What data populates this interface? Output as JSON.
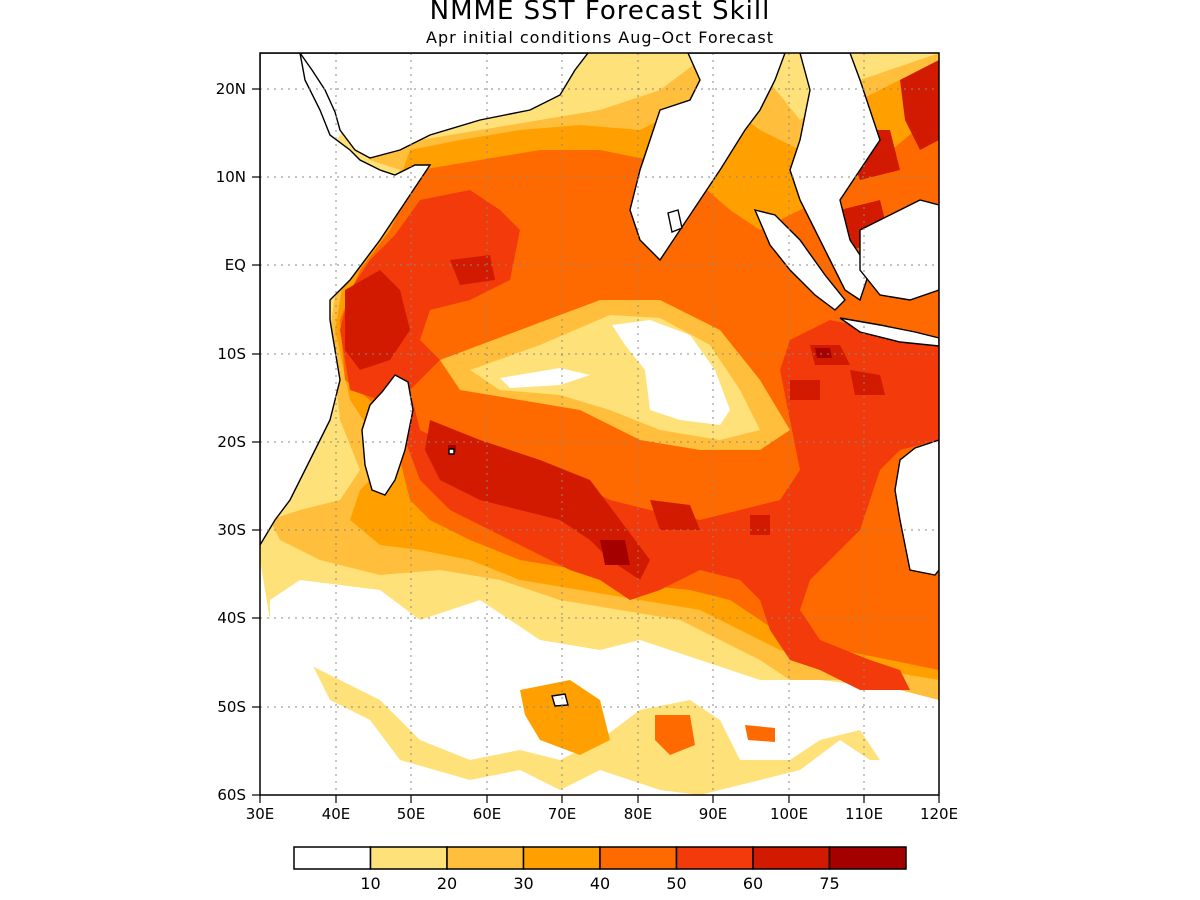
{
  "title": "NMME SST Forecast Skill",
  "subtitle": "Apr initial conditions  Aug–Oct Forecast",
  "map": {
    "region": "Indian Ocean",
    "lon_range": [
      30,
      120
    ],
    "lat_range": [
      -60,
      24
    ],
    "lon_ticks": [
      "30E",
      "40E",
      "50E",
      "60E",
      "70E",
      "80E",
      "90E",
      "100E",
      "110E",
      "120E"
    ],
    "lat_ticks": [
      "20N",
      "10N",
      "EQ",
      "10S",
      "20S",
      "30S",
      "40S",
      "50S",
      "60S"
    ],
    "grid": "dotted"
  },
  "colorbar": {
    "labels": [
      "10",
      "20",
      "30",
      "40",
      "50",
      "60",
      "75"
    ],
    "colors": [
      "#ffffff",
      "#ffe17a",
      "#ffbf3c",
      "#ffa000",
      "#ff6a00",
      "#f23a0a",
      "#d11a00",
      "#a50000"
    ]
  }
}
